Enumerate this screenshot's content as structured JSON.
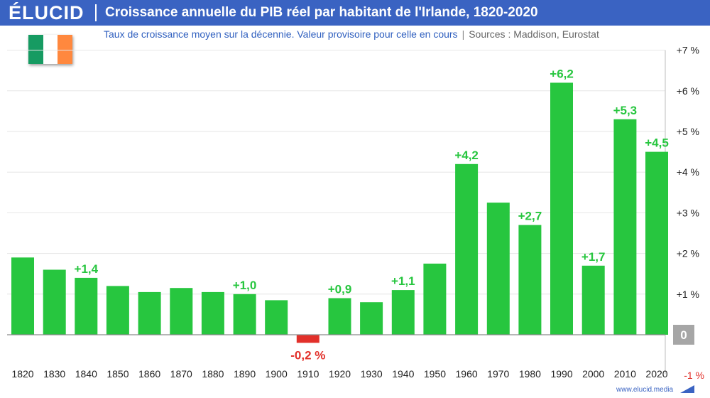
{
  "brand": {
    "logo": "ÉLUCID",
    "url": "www.elucid.media",
    "color": "#3a63c2"
  },
  "colors": {
    "positive": "#27c63f",
    "negative": "#e2302a",
    "zero_box": "#a6a6a6",
    "flag": [
      "#169b62",
      "#ffffff",
      "#ff883e"
    ]
  },
  "flag": {
    "icon": "ireland-flag-icon"
  },
  "chart_data": {
    "type": "bar",
    "title": "Croissance annuelle du PIB réel par habitant de l'Irlande, 1820-2020",
    "subtitle": "Taux de croissance moyen sur la décennie. Valeur provisoire pour celle en cours",
    "separator": "|",
    "sources": "Sources : Maddison, Eurostat",
    "unit": "%",
    "categories": [
      "1820",
      "1830",
      "1840",
      "1850",
      "1860",
      "1870",
      "1880",
      "1890",
      "1900",
      "1910",
      "1920",
      "1930",
      "1940",
      "1950",
      "1960",
      "1970",
      "1980",
      "1990",
      "2000",
      "2010",
      "2020"
    ],
    "values": [
      1.9,
      1.6,
      1.4,
      1.2,
      1.05,
      1.15,
      1.05,
      1.0,
      0.85,
      -0.2,
      0.9,
      0.8,
      1.1,
      1.75,
      4.2,
      3.25,
      2.7,
      6.2,
      1.7,
      5.3,
      4.5
    ],
    "labels": [
      "",
      "",
      "+1,4",
      "",
      "",
      "",
      "",
      "+1,0",
      "",
      "-0,2 %",
      "+0,9",
      "",
      "+1,1",
      "",
      "+4,2",
      "",
      "+2,7",
      "+6,2",
      "+1,7",
      "+5,3",
      "+4,5"
    ],
    "yticks": [
      {
        "value": 7,
        "label": "+7 %"
      },
      {
        "value": 6,
        "label": "+6 %"
      },
      {
        "value": 5,
        "label": "+5 %"
      },
      {
        "value": 4,
        "label": "+4 %"
      },
      {
        "value": 3,
        "label": "+3 %"
      },
      {
        "value": 2,
        "label": "+2 %"
      },
      {
        "value": 1,
        "label": "+1 %"
      },
      {
        "value": 0,
        "label": "0"
      },
      {
        "value": -1,
        "label": "-1 %"
      }
    ],
    "ylim": [
      -1,
      7
    ],
    "grid": true,
    "xlabel": "",
    "ylabel": ""
  }
}
